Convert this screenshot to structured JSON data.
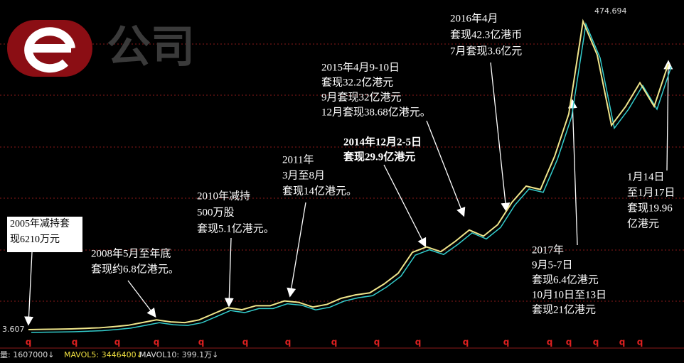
{
  "chart_data": {
    "type": "line",
    "logo": "公司",
    "high_label": "474.694",
    "low_label": "3.607",
    "ylim": [
      3.607,
      474.694
    ],
    "color": "#f0e68c",
    "values": [
      3.6,
      4,
      4.3,
      4.7,
      5.5,
      6.3,
      8,
      10,
      14,
      18,
      15,
      14,
      18,
      27,
      36,
      33,
      39,
      39,
      46,
      44,
      37,
      41,
      50,
      55,
      58,
      71,
      87,
      118,
      126,
      119,
      134,
      151,
      142,
      159,
      192,
      216,
      211,
      260,
      323,
      460,
      410,
      306,
      334,
      369,
      334,
      397
    ],
    "annotations": [
      {
        "lines": [
          "2005年减持套",
          "现6210万元"
        ]
      },
      {
        "lines": [
          "2008年5月至年底",
          "套现约6.8亿港元。"
        ]
      },
      {
        "lines": [
          "2010年减持",
          "500万股",
          "套现5.1亿港元。"
        ]
      },
      {
        "lines": [
          "2011年",
          "3月至8月",
          "套现14亿港元。"
        ]
      },
      {
        "lines": [
          "2014年12月2-5日",
          "套现29.9亿港元"
        ]
      },
      {
        "lines": [
          "2015年4月9-10日",
          "套现32.2亿港元",
          "9月套现32亿港元",
          "12月套现38.68亿港元。"
        ]
      },
      {
        "lines": [
          "2016年4月",
          "套现42.3亿港币",
          "7月套现3.6亿元"
        ]
      },
      {
        "lines": [
          "2017年",
          "9月5-7日",
          "套现6.4亿港元",
          "10月10日至13日",
          "套现21亿港元"
        ]
      },
      {
        "lines": [
          "1月14日",
          "至1月17日",
          "套现19.96",
          "亿港元"
        ]
      }
    ],
    "markers": [
      "q",
      "q",
      "q",
      "q",
      "q",
      "q",
      "q",
      "q",
      "q",
      "q",
      "q",
      "q",
      "q",
      "q",
      "q",
      "q",
      "q"
    ],
    "status_bar": [
      "量: 1607000↓",
      "MAVOL5: 3446400↓",
      "MAVOL10: 399.1万↓"
    ]
  }
}
